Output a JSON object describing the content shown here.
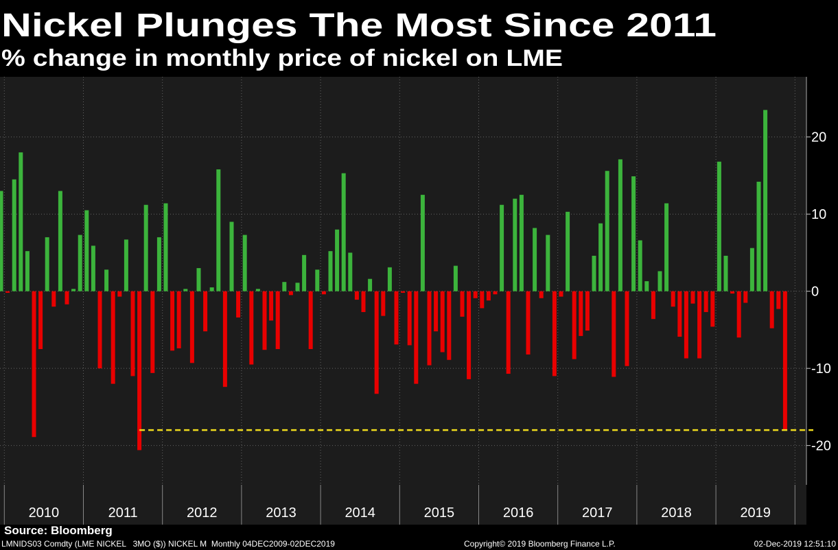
{
  "chart_data": {
    "type": "bar",
    "title": "Nickel Plunges The Most Since 2011",
    "subtitle": "% change in monthly price of nickel on LME",
    "year_labels": [
      "2010",
      "2011",
      "2012",
      "2013",
      "2014",
      "2015",
      "2016",
      "2017",
      "2018",
      "2019"
    ],
    "values": [
      13.0,
      -0.2,
      14.5,
      18.0,
      5.2,
      -18.9,
      -7.5,
      7.0,
      -2.0,
      13.0,
      -1.7,
      0.3,
      7.3,
      10.5,
      5.9,
      -10.0,
      2.8,
      -12.0,
      -0.7,
      6.7,
      -11.0,
      -20.6,
      11.2,
      -10.6,
      7.0,
      11.4,
      -7.7,
      -7.4,
      0.3,
      -9.3,
      3.0,
      -5.2,
      0.5,
      15.8,
      -12.4,
      9.0,
      -3.4,
      7.3,
      -9.5,
      0.3,
      -7.6,
      -3.8,
      -7.5,
      1.2,
      -0.5,
      1.1,
      4.7,
      -7.5,
      2.8,
      -0.4,
      5.2,
      8.0,
      15.3,
      5.0,
      -1.1,
      -2.7,
      1.6,
      -13.3,
      -3.2,
      3.1,
      -6.9,
      -0.2,
      -7.0,
      -12.0,
      12.5,
      -9.6,
      -5.2,
      -7.9,
      -8.9,
      3.3,
      -3.3,
      -11.4,
      -0.9,
      -2.2,
      -1.2,
      -0.4,
      11.2,
      -10.7,
      12.0,
      12.5,
      -8.2,
      8.2,
      -0.9,
      7.3,
      -11.0,
      -0.7,
      10.3,
      -8.8,
      -5.8,
      -5.1,
      4.6,
      8.8,
      15.6,
      -11.1,
      17.1,
      -9.7,
      14.9,
      6.6,
      1.3,
      -3.6,
      2.6,
      11.4,
      -2.0,
      -5.9,
      -8.7,
      -1.6,
      -8.7,
      -2.7,
      -4.6,
      16.8,
      4.6,
      -0.3,
      -6.0,
      -1.5,
      5.6,
      14.2,
      23.5,
      -4.8,
      -2.3,
      -18.0
    ],
    "positive_color": "#3cb43c",
    "negative_color": "#e80000",
    "reference_line": {
      "value": -18,
      "color": "#f0dc1e"
    },
    "ylim": [
      -25.1,
      27.8
    ],
    "yticks": [
      20,
      10,
      0,
      -10,
      -20
    ],
    "grid": true
  },
  "footer": {
    "source": "Source: Bloomberg",
    "ticker": "LMNIDS03 Comdty (LME NICKEL   3MO ($)) NICKEL M  Monthly 04DEC2009-02DEC2019",
    "copyright": "Copyright© 2019 Bloomberg Finance L.P.",
    "timestamp": "02-Dec-2019 12:51:10"
  }
}
